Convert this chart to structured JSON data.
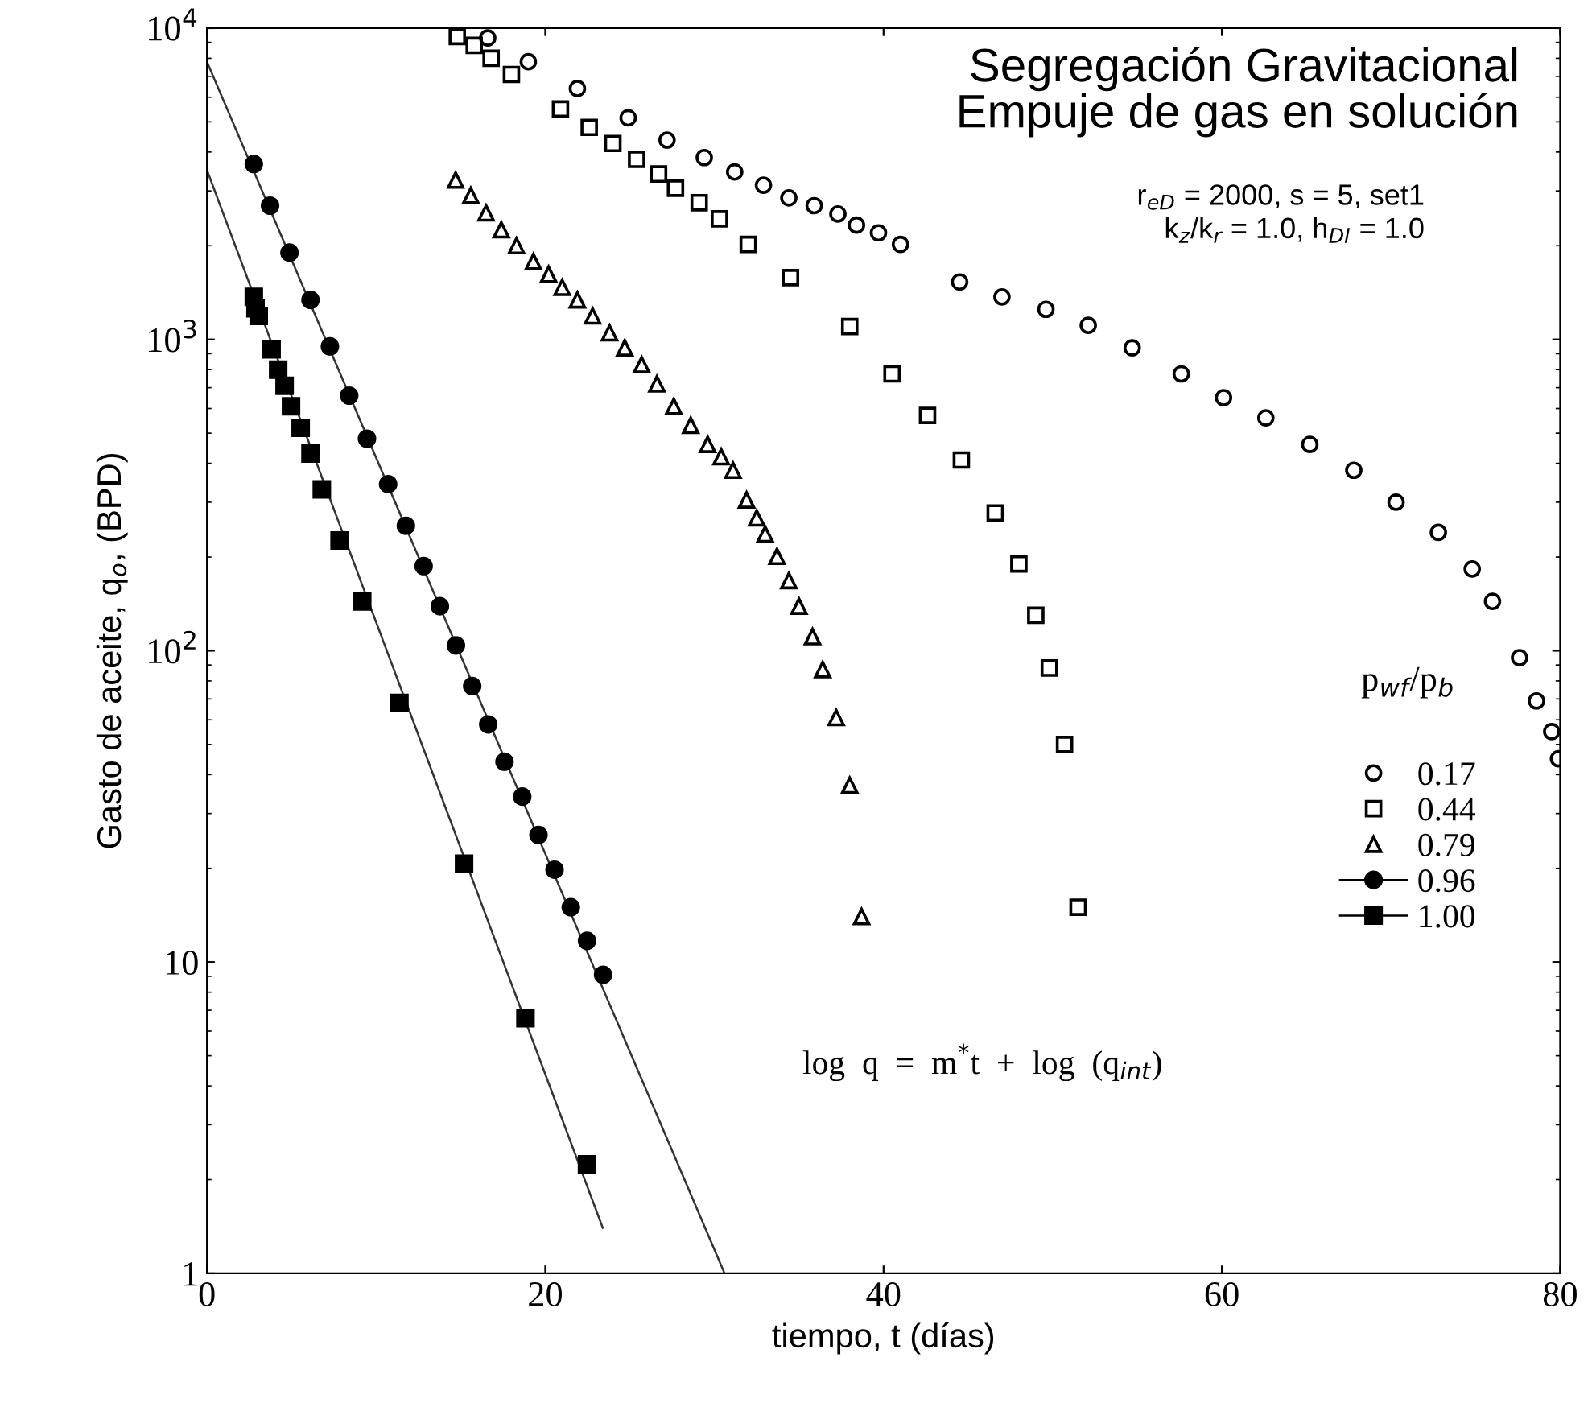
{
  "chart_data": {
    "type": "scatter",
    "title": "Segregación Gravitacional\nEmpuje de gas en solución",
    "subtitle": "r$_{eD}$ = 2000, s = 5, set1\nk$_{z}$/k$_{r}$ = 1.0, h$_{DI}$ = 1.0",
    "xlabel": "tiempo, t (días)",
    "ylabel": "Gasto de aceite, q$_{o}$, (BPD)",
    "legend_title": "p$_{wf}$/p$_{b}$",
    "legend": "right",
    "annotations": [
      "log  q  =  m$^{*}$t  +  log  (q$_{int}$)"
    ],
    "log": "y",
    "xlim": [
      0,
      80
    ],
    "ylim": [
      1,
      10000
    ],
    "xticks": [
      0,
      20,
      40,
      60,
      80
    ],
    "yticks": [
      1,
      10,
      {
        "value": 100,
        "label": "10$^{2}$"
      },
      {
        "value": 1000,
        "label": "10$^{3}$"
      },
      {
        "value": 10000,
        "label": "10$^{4}$"
      }
    ],
    "grid": false,
    "series": [
      {
        "name": "0.17",
        "color": "#000000",
        "marker": "circle",
        "x": [
          16.6,
          19.0,
          21.9,
          24.9,
          27.2,
          29.4,
          31.2,
          32.9,
          34.4,
          35.9,
          37.3,
          38.4,
          39.7,
          41.0,
          44.5,
          47.0,
          49.6,
          52.1,
          54.7,
          57.6,
          60.1,
          62.6,
          65.2,
          67.8,
          70.3,
          72.8,
          74.8,
          76.0,
          77.6,
          78.6,
          79.5,
          79.9
        ],
        "values": [
          9300,
          7800,
          6400,
          5150,
          4370,
          3840,
          3450,
          3130,
          2850,
          2690,
          2530,
          2330,
          2200,
          2020,
          1530,
          1370,
          1250,
          1110,
          940,
          775,
          650,
          560,
          460,
          380,
          300,
          240,
          183,
          144,
          95,
          69,
          55,
          45
        ]
      },
      {
        "name": "0.44",
        "color": "#000000",
        "marker": "square",
        "x": [
          14.8,
          15.8,
          16.8,
          18.0,
          20.9,
          22.6,
          24.0,
          25.4,
          26.7,
          27.7,
          29.1,
          30.3,
          32.0,
          34.5,
          38.0,
          40.5,
          42.6,
          44.6,
          46.6,
          48.0,
          49.0,
          49.8,
          50.7,
          51.5
        ],
        "values": [
          9400,
          8800,
          8000,
          7100,
          5500,
          4800,
          4260,
          3790,
          3400,
          3060,
          2750,
          2440,
          2020,
          1580,
          1100,
          775,
          570,
          410,
          277,
          190,
          130,
          88,
          50,
          15
        ]
      },
      {
        "name": "0.79",
        "color": "#000000",
        "marker": "triangle",
        "x": [
          14.7,
          15.6,
          16.5,
          17.4,
          18.3,
          19.3,
          20.2,
          21.0,
          21.9,
          22.8,
          23.8,
          24.7,
          25.7,
          26.6,
          27.6,
          28.6,
          29.6,
          30.4,
          31.1,
          31.9,
          32.5,
          33.0,
          33.7,
          34.4,
          35.0,
          35.8,
          36.4,
          37.2,
          38.0,
          38.7
        ],
        "values": [
          3250,
          2900,
          2550,
          2250,
          2000,
          1780,
          1620,
          1470,
          1340,
          1190,
          1050,
          940,
          830,
          720,
          610,
          530,
          460,
          420,
          380,
          305,
          267,
          237,
          201,
          168,
          139,
          111,
          87,
          61,
          37,
          14
        ]
      },
      {
        "name": "0.96",
        "color": "#000000",
        "marker": "circle",
        "line_style": "solid",
        "x": [
          2.77,
          3.73,
          4.88,
          6.12,
          7.27,
          8.41,
          9.46,
          10.71,
          11.76,
          12.81,
          13.77,
          14.72,
          15.68,
          16.63,
          17.59,
          18.64,
          19.6,
          20.55,
          21.51,
          22.47,
          23.42
        ],
        "values": [
          3660,
          2690,
          1900,
          1340,
          950,
          660,
          480,
          343,
          252,
          187,
          139,
          104,
          77,
          58,
          44,
          34,
          25.6,
          19.8,
          15.0,
          11.7,
          9.1
        ]
      },
      {
        "name": "1.00",
        "color": "#000000",
        "marker": "square",
        "line_style": "solid",
        "x": [
          2.77,
          2.87,
          3.06,
          3.82,
          4.21,
          4.59,
          4.97,
          5.54,
          6.12,
          6.79,
          7.84,
          9.18,
          11.38,
          15.2,
          18.83,
          22.47
        ],
        "values": [
          1370,
          1260,
          1190,
          930,
          800,
          710,
          610,
          520,
          430,
          330,
          226,
          144,
          68,
          20.7,
          6.6,
          2.24
        ]
      },
      {
        "type": "line",
        "color": "#333333",
        "line_style": "solid",
        "x": [
          0,
          30.6
        ],
        "values": [
          7800,
          1
        ]
      },
      {
        "type": "line",
        "color": "#333333",
        "line_style": "solid",
        "x": [
          0,
          23.4
        ],
        "values": [
          3500,
          1.4
        ]
      }
    ]
  }
}
